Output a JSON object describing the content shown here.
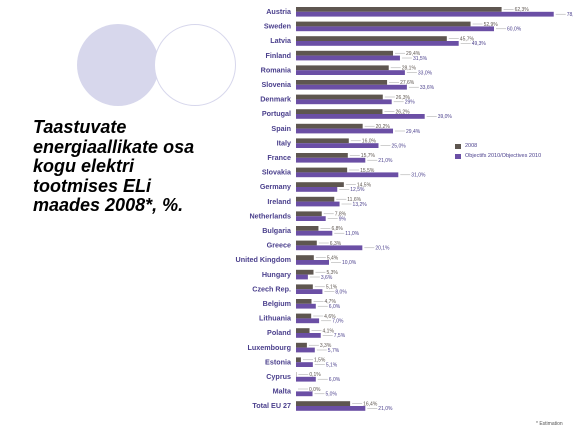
{
  "headline_lines": [
    "Taastuvate",
    "energiaallikate osa",
    "kogu elektri",
    "tootmises ELi",
    "maades 2008*, %."
  ],
  "footnote": "* Estimation",
  "colors": {
    "series_2008": "#5e5650",
    "series_target": "#6b4fa5",
    "circle": "#d7d7ec"
  },
  "chart_data": {
    "type": "bar",
    "orientation": "horizontal",
    "categories": [
      "Austria",
      "Sweden",
      "Latvia",
      "Finland",
      "Romania",
      "Slovenia",
      "Denmark",
      "Portugal",
      "Spain",
      "Italy",
      "France",
      "Slovakia",
      "Germany",
      "Ireland",
      "Netherlands",
      "Bulgaria",
      "Greece",
      "United Kingdom",
      "Hungary",
      "Czech Rep.",
      "Belgium",
      "Lithuania",
      "Poland",
      "Luxembourg",
      "Estonia",
      "Cyprus",
      "Malta",
      "Total EU 27"
    ],
    "series": [
      {
        "name": "2008",
        "values": [
          62.3,
          52.9,
          45.7,
          29.4,
          28.1,
          27.6,
          26.3,
          26.2,
          20.2,
          16.0,
          15.7,
          15.5,
          14.5,
          11.6,
          7.8,
          6.8,
          6.3,
          5.4,
          5.3,
          5.1,
          4.7,
          4.6,
          4.1,
          3.3,
          1.5,
          0.1,
          0.0,
          16.4
        ],
        "labels": [
          "62,3%",
          "52,9%",
          "45,7%",
          "29,4%",
          "28,1%",
          "27,6%",
          "26,3%",
          "26,2%",
          "20,2%",
          "16,0%",
          "15,7%",
          "15,5%",
          "14,5%",
          "11,6%",
          "7,8%",
          "6,8%",
          "6,3%",
          "5,4%",
          "5,3%",
          "5,1%",
          "4,7%",
          "4,6%",
          "4,1%",
          "3,3%",
          "1,5%",
          "0,1%",
          "0,0%",
          "16,4%"
        ]
      },
      {
        "name": "Objectifs 2010/Objectives 2010",
        "values": [
          78.1,
          60.0,
          49.3,
          31.5,
          33.0,
          33.6,
          29.0,
          39.0,
          29.4,
          25.0,
          21.0,
          31.0,
          12.5,
          13.2,
          9.0,
          11.0,
          20.1,
          10.0,
          3.6,
          8.0,
          6.0,
          7.0,
          7.5,
          5.7,
          5.1,
          6.0,
          5.0,
          21.0
        ],
        "labels": [
          "78,1%",
          "60,0%",
          "49,3%",
          "31,5%",
          "33,0%",
          "33,6%",
          "29%",
          "39,0%",
          "29,4%",
          "25,0%",
          "21,0%",
          "31,0%",
          "12,5%",
          "13,2%",
          "9%",
          "11,0%",
          "20,1%",
          "10,0%",
          "3,6%",
          "8,0%",
          "6,0%",
          "7,0%",
          "7,5%",
          "5,7%",
          "5,1%",
          "6,0%",
          "5,0%",
          "21,0%"
        ]
      }
    ],
    "title": "",
    "xlabel": "",
    "ylabel": "",
    "xlim": [
      0,
      80
    ],
    "legend_position": "right"
  }
}
